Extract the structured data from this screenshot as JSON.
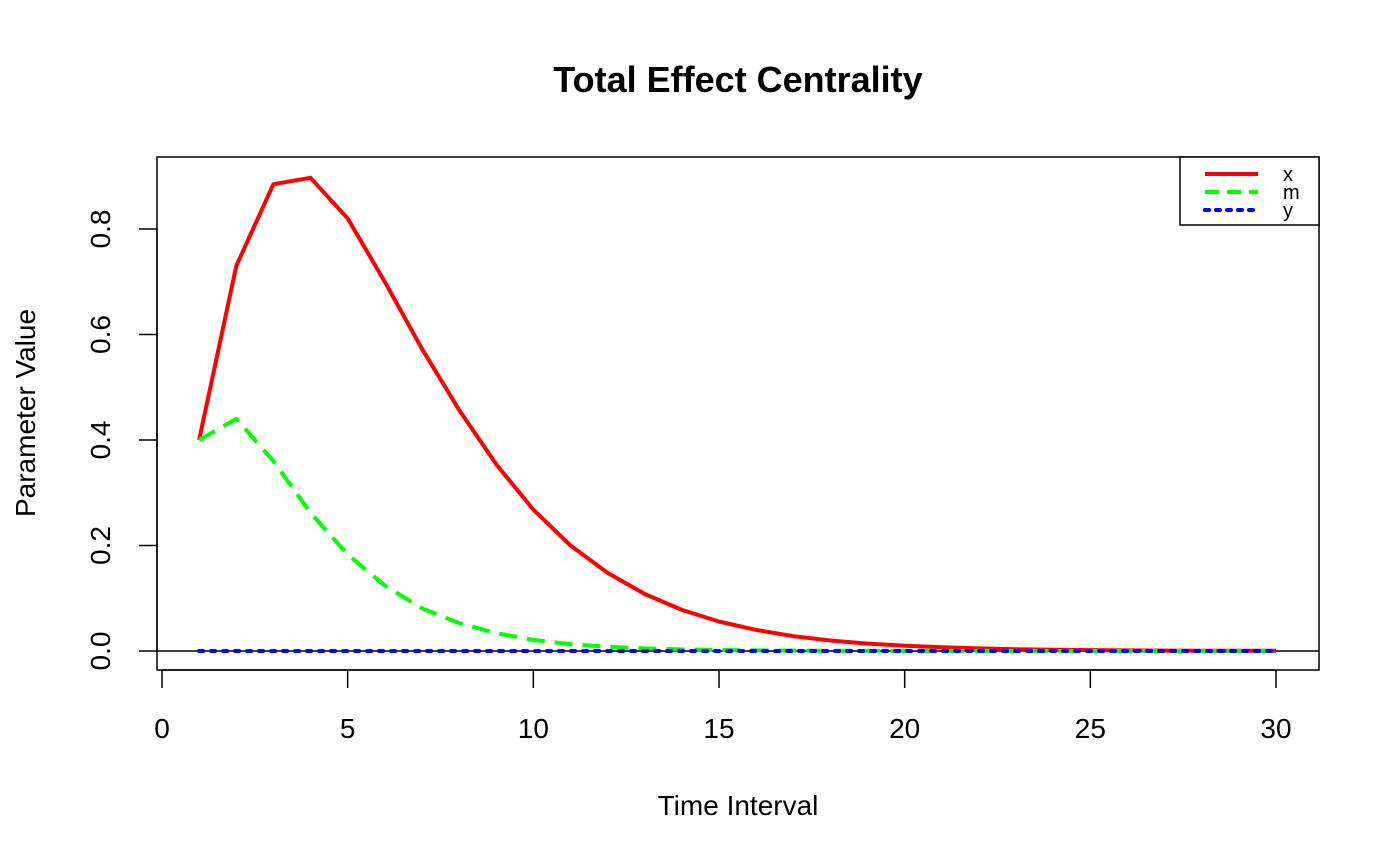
{
  "chart_data": {
    "type": "line",
    "title": "Total Effect Centrality",
    "xlabel": "Time Interval",
    "ylabel": "Parameter Value",
    "xlim": [
      0,
      30
    ],
    "ylim": [
      0,
      0.9
    ],
    "xticks": [
      0,
      5,
      10,
      15,
      20,
      25,
      30
    ],
    "xtick_labels": [
      "0",
      "5",
      "10",
      "15",
      "20",
      "25",
      "30"
    ],
    "yticks": [
      0,
      0.2,
      0.4,
      0.6,
      0.8
    ],
    "ytick_labels": [
      "0.0",
      "0.2",
      "0.4",
      "0.6",
      "0.8"
    ],
    "grid": false,
    "legend_position": "top-right",
    "hline": 0,
    "x": [
      1,
      2,
      3,
      4,
      5,
      6,
      7,
      8,
      9,
      10,
      11,
      12,
      13,
      14,
      15,
      16,
      17,
      18,
      19,
      20,
      21,
      22,
      23,
      24,
      25,
      26,
      27,
      28,
      29,
      30
    ],
    "series": [
      {
        "name": "x",
        "color": "#ff0000",
        "dash": "solid",
        "values": [
          0.4,
          0.73,
          0.885,
          0.897,
          0.82,
          0.7,
          0.573,
          0.457,
          0.354,
          0.268,
          0.2,
          0.148,
          0.108,
          0.078,
          0.056,
          0.04,
          0.028,
          0.02,
          0.014,
          0.01,
          0.007,
          0.005,
          0.0035,
          0.0025,
          0.0017,
          0.0012,
          0.0008,
          0.0006,
          0.0004,
          0.0003
        ]
      },
      {
        "name": "m",
        "color": "#00ff00",
        "dash": "dashed",
        "values": [
          0.4,
          0.44,
          0.36,
          0.262,
          0.183,
          0.124,
          0.081,
          0.053,
          0.034,
          0.021,
          0.013,
          0.008,
          0.005,
          0.003,
          0.002,
          0.0012,
          0.0007,
          0.0004,
          0.0003,
          0.0002,
          0.0001,
          0.0001,
          0,
          0,
          0,
          0,
          0,
          0,
          0,
          0
        ]
      },
      {
        "name": "y",
        "color": "#0000ff",
        "dash": "dotted",
        "values": [
          0,
          0,
          0,
          0,
          0,
          0,
          0,
          0,
          0,
          0,
          0,
          0,
          0,
          0,
          0,
          0,
          0,
          0,
          0,
          0,
          0,
          0,
          0,
          0,
          0,
          0,
          0,
          0,
          0,
          0
        ]
      }
    ]
  }
}
